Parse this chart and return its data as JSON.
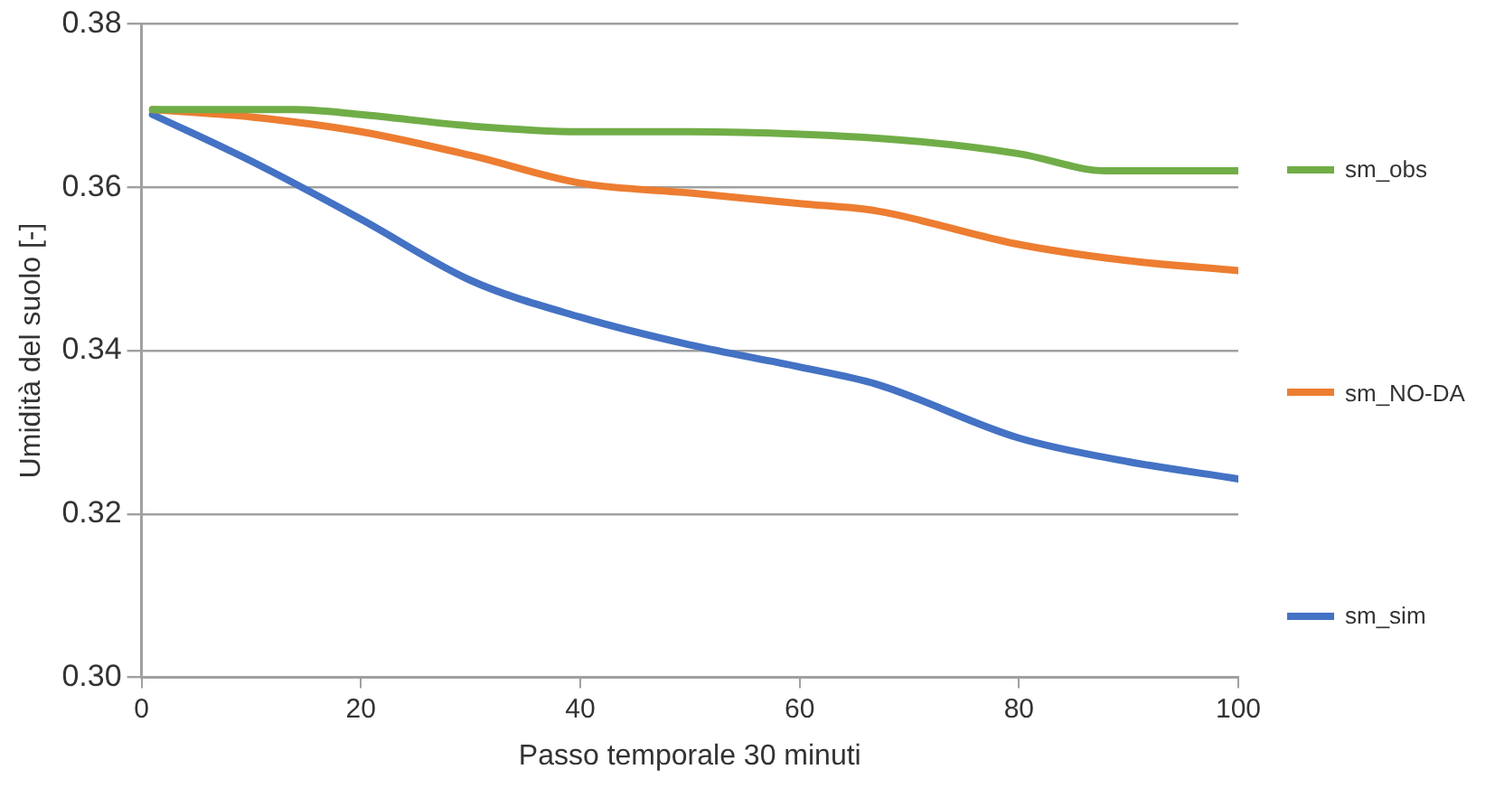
{
  "chart_data": {
    "type": "line",
    "xlabel": "Passo temporale 30 minuti",
    "ylabel": "Umidità del suolo [-]",
    "xlim": [
      0,
      100
    ],
    "xticks": [
      0,
      20,
      40,
      60,
      80,
      100
    ],
    "ylim": [
      0.3,
      0.38
    ],
    "yticks": [
      {
        "value": 0.3,
        "label": "0.30"
      },
      {
        "value": 0.32,
        "label": "0.32"
      },
      {
        "value": 0.34,
        "label": "0.34"
      },
      {
        "value": 0.36,
        "label": "0.36"
      },
      {
        "value": 0.38,
        "label": "0.38"
      }
    ],
    "grid": "y",
    "legend": "right",
    "marker": "none",
    "series": [
      {
        "name": "sm_obs",
        "color": "#70ad47",
        "x": [
          1,
          14,
          20,
          30,
          40,
          50,
          60,
          70,
          80,
          88,
          100
        ],
        "values": [
          0.3695,
          0.3695,
          0.3689,
          0.3675,
          0.3668,
          0.3668,
          0.3665,
          0.3657,
          0.3641,
          0.362,
          0.362
        ]
      },
      {
        "name": "sm_NO-DA",
        "color": "#ed7d31",
        "x": [
          1,
          10,
          20,
          30,
          40,
          50,
          60,
          67,
          80,
          90,
          100
        ],
        "values": [
          0.3695,
          0.3686,
          0.3668,
          0.3639,
          0.3605,
          0.3593,
          0.358,
          0.3571,
          0.353,
          0.351,
          0.3498
        ]
      },
      {
        "name": "sm_sim",
        "color": "#4472c4",
        "x": [
          1,
          10,
          20,
          30,
          40,
          50,
          60,
          67,
          80,
          90,
          100
        ],
        "values": [
          0.3689,
          0.3632,
          0.3561,
          0.3486,
          0.3441,
          0.3407,
          0.338,
          0.3359,
          0.3293,
          0.3264,
          0.3243
        ]
      }
    ]
  }
}
